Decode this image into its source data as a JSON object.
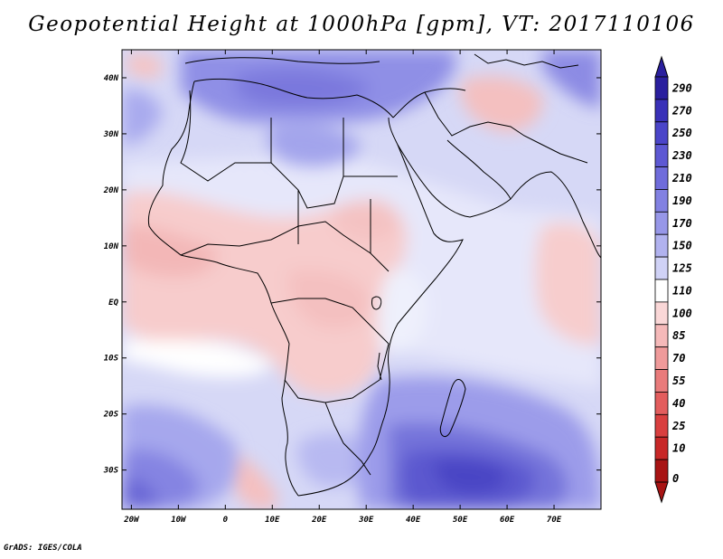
{
  "title": "Geopotential Height at 1000hPa [gpm], VT: 2017110106",
  "footer": "GrADS: IGES/COLA",
  "map": {
    "region": "Africa and surrounding oceans",
    "lon_range": [
      -22,
      80
    ],
    "lat_range": [
      -37,
      45
    ],
    "x_ticks": [
      "20W",
      "10W",
      "0",
      "10E",
      "20E",
      "30E",
      "40E",
      "50E",
      "60E",
      "70E"
    ],
    "y_ticks": [
      "40N",
      "30N",
      "20N",
      "10N",
      "EQ",
      "10S",
      "20S",
      "30S"
    ]
  },
  "colorbar": {
    "levels": [
      "290",
      "270",
      "250",
      "230",
      "210",
      "190",
      "170",
      "150",
      "125",
      "110",
      "100",
      "85",
      "70",
      "55",
      "40",
      "25",
      "10",
      "0"
    ],
    "colors": [
      "#2a1f9e",
      "#3a31b8",
      "#4b45c9",
      "#5d58d3",
      "#6f6cdb",
      "#8281e2",
      "#9797e8",
      "#b1b2ef",
      "#d0d2f6",
      "#ffffff",
      "#fad7d7",
      "#f5b9b9",
      "#ef9a9a",
      "#e97b7b",
      "#e35d5d",
      "#d93f3f",
      "#c82828",
      "#a81414"
    ]
  }
}
